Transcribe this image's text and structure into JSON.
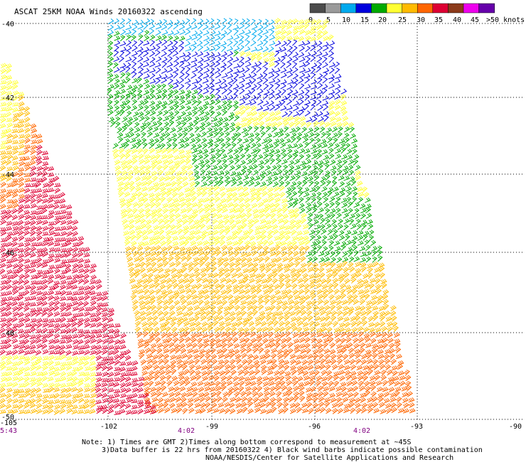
{
  "title": "ASCAT 25KM NOAA Winds 20160322 ascending",
  "legend": {
    "labels": [
      "0",
      "5",
      "10",
      "15",
      "20",
      "25",
      "30",
      "35",
      "40",
      "45",
      ">50 knots"
    ],
    "colors": [
      "#4c4c4c",
      "#9a9a9a",
      "#00aaee",
      "#0000dd",
      "#00aa00",
      "#ffff33",
      "#ffbb00",
      "#ff6600",
      "#dd0033",
      "#8b3a1a",
      "#ee00ee",
      "#6600aa"
    ]
  },
  "map": {
    "lat_labels": [
      "-40",
      "-42",
      "-44",
      "-46",
      "-48",
      "-50"
    ],
    "lon_labels": [
      "-105",
      "-102",
      "-99",
      "-96",
      "-93",
      "-90"
    ],
    "time_labels": [
      "5:43",
      "4:02",
      "4:02"
    ],
    "lon_range": [
      -105,
      -90
    ],
    "lat_range": [
      -50,
      -40
    ],
    "grid": true
  },
  "notes": [
    "Note: 1) Times are GMT 2)Times along bottom correspond to measurement at ~45S",
    "3)Data buffer is 22 hrs from 20160322 4) Black wind barbs indicate possible contamination",
    "NOAA/NESDIS/Center for Satellite Applications and Research"
  ]
}
